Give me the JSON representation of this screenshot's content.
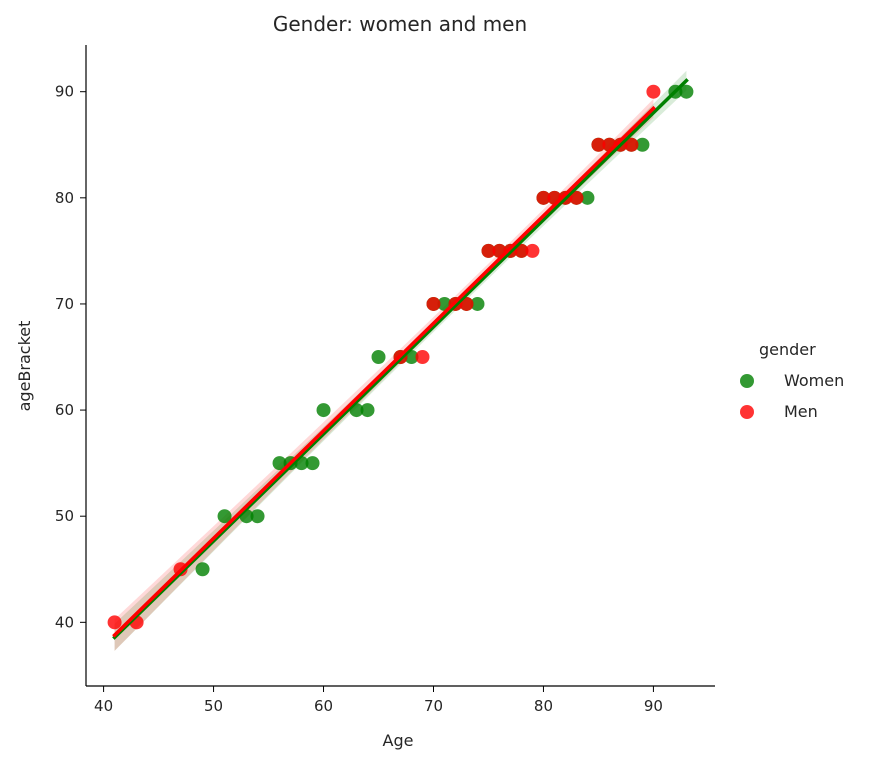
{
  "chart_data": {
    "type": "scatter",
    "title": "Gender: women and men",
    "xlabel": "Age",
    "ylabel": "ageBracket",
    "xlim": [
      38.4,
      95.6
    ],
    "ylim": [
      34,
      94.4
    ],
    "xticks": [
      40,
      50,
      60,
      70,
      80,
      90
    ],
    "yticks": [
      40,
      50,
      60,
      70,
      80,
      90
    ],
    "grid": false,
    "legend": {
      "title": "gender",
      "placement": "right-outside"
    },
    "series": [
      {
        "name": "Women",
        "color": "#008000",
        "x": [
          49,
          51,
          53,
          54,
          56,
          57,
          58,
          59,
          60,
          63,
          64,
          65,
          67,
          68,
          70,
          71,
          72,
          73,
          74,
          75,
          76,
          77,
          78,
          80,
          81,
          82,
          83,
          84,
          85,
          86,
          87,
          88,
          89,
          92,
          93
        ],
        "y": [
          45,
          50,
          50,
          50,
          55,
          55,
          55,
          55,
          60,
          60,
          60,
          65,
          65,
          65,
          70,
          70,
          70,
          70,
          70,
          75,
          75,
          75,
          75,
          80,
          80,
          80,
          80,
          80,
          85,
          85,
          85,
          85,
          85,
          90,
          90
        ],
        "fit": [
          41,
          93
        ]
      },
      {
        "name": "Men",
        "color": "#ff0000",
        "x": [
          41,
          43,
          47,
          67,
          69,
          70,
          72,
          73,
          75,
          76,
          77,
          78,
          79,
          80,
          81,
          82,
          83,
          85,
          86,
          87,
          88,
          90
        ],
        "y": [
          40,
          40,
          45,
          65,
          65,
          70,
          70,
          70,
          75,
          75,
          75,
          75,
          75,
          80,
          80,
          80,
          80,
          85,
          85,
          85,
          85,
          90
        ],
        "fit": [
          41,
          90
        ]
      }
    ]
  }
}
